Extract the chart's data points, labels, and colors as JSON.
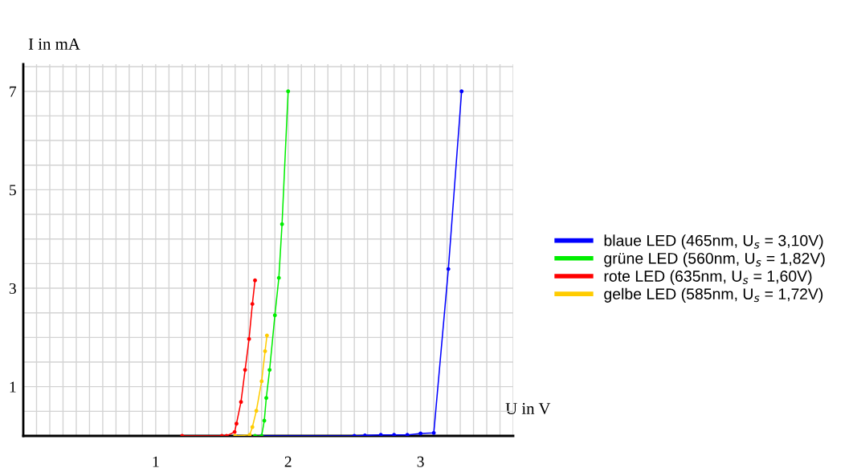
{
  "chart_data": {
    "type": "line",
    "xlabel": "U in V",
    "ylabel": "I in mA",
    "xlim": [
      0,
      3.7
    ],
    "ylim": [
      0,
      7.55
    ],
    "xticks": [
      {
        "value": 0.1,
        "label": null
      },
      {
        "value": 0.2,
        "label": null
      },
      {
        "value": 0.3,
        "label": null
      },
      {
        "value": 0.4,
        "label": null
      },
      {
        "value": 0.5,
        "label": null
      },
      {
        "value": 0.6,
        "label": null
      },
      {
        "value": 0.7,
        "label": null
      },
      {
        "value": 0.8,
        "label": null
      },
      {
        "value": 0.9,
        "label": null
      },
      1,
      {
        "value": 1.1,
        "label": null
      },
      {
        "value": 1.2,
        "label": null
      },
      {
        "value": 1.3,
        "label": null
      },
      {
        "value": 1.4,
        "label": null
      },
      {
        "value": 1.5,
        "label": null
      },
      {
        "value": 1.6,
        "label": null
      },
      {
        "value": 1.7,
        "label": null
      },
      {
        "value": 1.8,
        "label": null
      },
      {
        "value": 1.9,
        "label": null
      },
      2,
      {
        "value": 2.1,
        "label": null
      },
      {
        "value": 2.2,
        "label": null
      },
      {
        "value": 2.3,
        "label": null
      },
      {
        "value": 2.4,
        "label": null
      },
      {
        "value": 2.5,
        "label": null
      },
      {
        "value": 2.6,
        "label": null
      },
      {
        "value": 2.7,
        "label": null
      },
      {
        "value": 2.8,
        "label": null
      },
      {
        "value": 2.9,
        "label": null
      },
      3,
      {
        "value": 3.1,
        "label": null
      },
      {
        "value": 3.2,
        "label": null
      },
      {
        "value": 3.3,
        "label": null
      },
      {
        "value": 3.4,
        "label": null
      },
      {
        "value": 3.5,
        "label": null
      },
      {
        "value": 3.6,
        "label": null
      },
      {
        "value": 3.7,
        "label": null
      }
    ],
    "yticks": [
      {
        "value": 0.5,
        "label": null
      },
      1,
      {
        "value": 1.5,
        "label": null
      },
      {
        "value": 2,
        "label": null
      },
      {
        "value": 2.5,
        "label": null
      },
      3,
      {
        "value": 3.5,
        "label": null
      },
      {
        "value": 4,
        "label": null
      },
      {
        "value": 4.5,
        "label": null
      },
      5,
      {
        "value": 5.5,
        "label": null
      },
      {
        "value": 6,
        "label": null
      },
      {
        "value": 6.5,
        "label": null
      },
      7,
      {
        "value": 7.5,
        "label": null
      }
    ],
    "grid": true,
    "legend": "right",
    "marker": "circle",
    "line_style": "solid",
    "series": [
      {
        "name": "blaue LED (465nm, U$_{s}$ = 3,10V)",
        "color": "#0000ff",
        "x": [
          1.8,
          2.5,
          2.58,
          2.7,
          2.8,
          2.9,
          3.0,
          3.1,
          3.21,
          3.31
        ],
        "values": [
          0,
          0,
          0.01,
          0.02,
          0.02,
          0.02,
          0.05,
          0.06,
          3.39,
          7.0
        ]
      },
      {
        "name": "grüne LED (560nm, U$_{s}$ = 1,82V)",
        "color": "#00ee00",
        "x": [
          1.75,
          1.8,
          1.82,
          1.835,
          1.86,
          1.9,
          1.93,
          1.954,
          2.0
        ],
        "values": [
          0,
          0,
          0.31,
          0.77,
          1.34,
          2.45,
          3.21,
          4.3,
          7.0
        ]
      },
      {
        "name": "rote LED (635nm, U$_{s}$ = 1,60V)",
        "color": "#ff0000",
        "x": [
          1.2,
          1.5,
          1.535,
          1.596,
          1.61,
          1.644,
          1.675,
          1.705,
          1.73,
          1.75
        ],
        "values": [
          0,
          0,
          0,
          0.08,
          0.25,
          0.69,
          1.34,
          1.97,
          2.68,
          3.16
        ]
      },
      {
        "name": "gelbe LED (585nm, U$_{s}$ = 1,72V)",
        "color": "#ffcc00",
        "x": [
          1.6,
          1.71,
          1.73,
          1.76,
          1.8,
          1.826,
          1.84
        ],
        "values": [
          0,
          0.02,
          0.18,
          0.51,
          1.11,
          1.72,
          2.04
        ]
      }
    ]
  }
}
